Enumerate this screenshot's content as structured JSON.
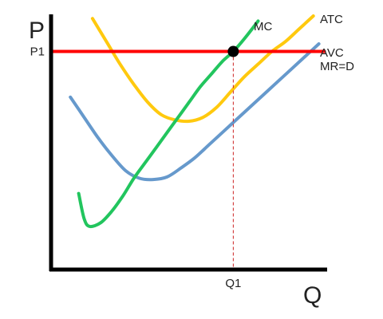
{
  "chart_data": {
    "type": "line",
    "title": "",
    "xlabel": "Q",
    "ylabel": "P",
    "xlim": [
      0,
      10
    ],
    "ylim": [
      0,
      10
    ],
    "grid": false,
    "legend": "none",
    "x_ticks": [
      {
        "label": "Q1",
        "value": 6.6
      }
    ],
    "y_ticks": [
      {
        "label": "P1",
        "value": 8.6
      }
    ],
    "series": [
      {
        "name": "MC",
        "color": "#22c55e",
        "x": [
          1.0,
          1.2,
          1.4,
          1.8,
          2.2,
          2.6,
          3.0,
          3.4,
          3.8,
          4.2,
          4.6,
          5.0,
          5.4,
          5.8,
          6.2,
          6.6,
          7.0,
          7.5
        ],
        "y": [
          3.0,
          2.0,
          1.7,
          1.85,
          2.3,
          2.9,
          3.6,
          4.2,
          4.8,
          5.4,
          6.0,
          6.6,
          7.2,
          7.7,
          8.2,
          8.6,
          9.1,
          9.8
        ]
      },
      {
        "name": "ATC",
        "color": "#ffc90e",
        "x": [
          1.5,
          2.0,
          2.5,
          3.0,
          3.5,
          4.0,
          4.5,
          5.0,
          5.5,
          6.0,
          6.5,
          7.0,
          7.5,
          8.0,
          8.5,
          9.0,
          9.5
        ],
        "y": [
          9.9,
          9.0,
          8.1,
          7.3,
          6.6,
          6.1,
          5.9,
          5.85,
          6.0,
          6.4,
          7.0,
          7.6,
          8.1,
          8.6,
          9.0,
          9.5,
          10.0
        ]
      },
      {
        "name": "AVC",
        "color": "#6699cc",
        "x": [
          0.7,
          1.2,
          1.7,
          2.2,
          2.7,
          3.2,
          3.7,
          4.2,
          4.7,
          5.2,
          5.7,
          6.2,
          6.7,
          7.2,
          7.7,
          8.2,
          8.7,
          9.2,
          9.7
        ],
        "y": [
          6.8,
          6.0,
          5.2,
          4.5,
          3.9,
          3.6,
          3.55,
          3.65,
          4.0,
          4.4,
          4.9,
          5.4,
          5.9,
          6.4,
          6.9,
          7.4,
          7.9,
          8.4,
          8.9
        ]
      },
      {
        "name": "MR=D",
        "color": "#ff0000",
        "x": [
          0,
          9.9
        ],
        "y": [
          8.6,
          8.6
        ]
      }
    ],
    "annotations": [
      {
        "type": "point",
        "x": 6.6,
        "y": 8.6,
        "color": "#000000"
      },
      {
        "type": "dropline",
        "x": 6.6,
        "from_y": 8.6,
        "to_y": 0,
        "color": "#cc2222",
        "style": "dashed"
      }
    ]
  }
}
